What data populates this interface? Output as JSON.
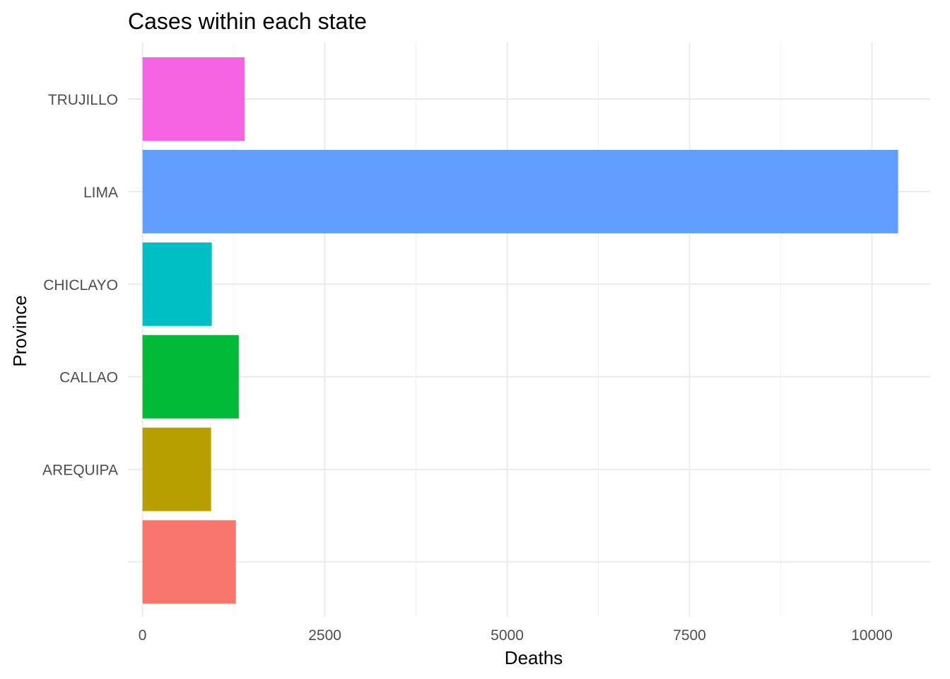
{
  "chart_data": {
    "type": "bar",
    "orientation": "horizontal",
    "title": "Cases within each state",
    "xlabel": "Deaths",
    "ylabel": "Province",
    "categories": [
      "",
      "AREQUIPA",
      "CALLAO",
      "CHICLAYO",
      "LIMA",
      "TRUJILLO"
    ],
    "values": [
      1280,
      940,
      1320,
      950,
      10360,
      1400
    ],
    "colors": [
      "#F8766D",
      "#B79F00",
      "#00BA38",
      "#00BFC4",
      "#619CFF",
      "#F564E3"
    ],
    "xlim": [
      -200,
      10800
    ],
    "x_ticks": [
      0,
      2500,
      5000,
      7500,
      10000
    ],
    "x_tick_labels": [
      "0",
      "2500",
      "5000",
      "7500",
      "10000"
    ],
    "grid": true,
    "legend": "none"
  }
}
